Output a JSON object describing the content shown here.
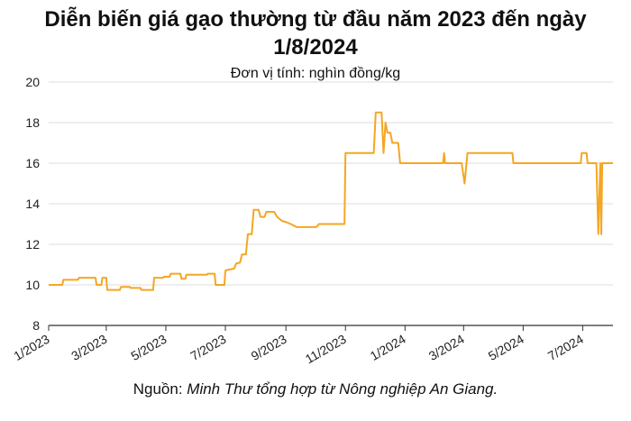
{
  "title_line1": "Diễn biến giá gạo thường từ đầu năm 2023 đến ngày",
  "title_line2": "1/8/2024",
  "subtitle": "Đơn vị tính: nghìn đồng/kg",
  "source_prefix": "Nguồn: ",
  "source_name": "Minh Thư tổng hợp từ Nông nghiệp An Giang.",
  "colors": {
    "line": "#f5a623",
    "grid": "#dddddd",
    "axis": "#333333"
  },
  "chart_data": {
    "type": "line",
    "title": "Diễn biến giá gạo thường từ đầu năm 2023 đến ngày 1/8/2024",
    "ylabel": "Đơn vị tính: nghìn đồng/kg",
    "xlabel": "",
    "ylim": [
      8,
      20
    ],
    "yticks": [
      8,
      10,
      12,
      14,
      16,
      18,
      20
    ],
    "xlim": [
      "2023-01-01",
      "2024-08-01"
    ],
    "xticks": [
      {
        "date": "2023-01-01",
        "label": "1/2023"
      },
      {
        "date": "2023-03-01",
        "label": "3/2023"
      },
      {
        "date": "2023-05-01",
        "label": "5/2023"
      },
      {
        "date": "2023-07-01",
        "label": "7/2023"
      },
      {
        "date": "2023-09-01",
        "label": "9/2023"
      },
      {
        "date": "2023-11-01",
        "label": "11/2023"
      },
      {
        "date": "2024-01-01",
        "label": "1/2024"
      },
      {
        "date": "2024-03-01",
        "label": "3/2024"
      },
      {
        "date": "2024-05-01",
        "label": "5/2024"
      },
      {
        "date": "2024-07-01",
        "label": "7/2024"
      }
    ],
    "grid": "horizontal",
    "series": [
      {
        "points": [
          [
            "2023-01-01",
            10.0
          ],
          [
            "2023-01-15",
            10.0
          ],
          [
            "2023-01-16",
            10.25
          ],
          [
            "2023-01-31",
            10.25
          ],
          [
            "2023-02-01",
            10.35
          ],
          [
            "2023-02-18",
            10.35
          ],
          [
            "2023-02-19",
            10.0
          ],
          [
            "2023-02-24",
            10.0
          ],
          [
            "2023-02-25",
            10.35
          ],
          [
            "2023-03-01",
            10.35
          ],
          [
            "2023-03-02",
            9.75
          ],
          [
            "2023-03-15",
            9.75
          ],
          [
            "2023-03-16",
            9.9
          ],
          [
            "2023-03-25",
            9.9
          ],
          [
            "2023-03-26",
            9.85
          ],
          [
            "2023-04-05",
            9.85
          ],
          [
            "2023-04-06",
            9.75
          ],
          [
            "2023-04-18",
            9.75
          ],
          [
            "2023-04-19",
            10.35
          ],
          [
            "2023-04-28",
            10.35
          ],
          [
            "2023-04-29",
            10.4
          ],
          [
            "2023-05-05",
            10.4
          ],
          [
            "2023-05-06",
            10.55
          ],
          [
            "2023-05-16",
            10.55
          ],
          [
            "2023-05-17",
            10.3
          ],
          [
            "2023-05-21",
            10.3
          ],
          [
            "2023-05-22",
            10.5
          ],
          [
            "2023-06-12",
            10.5
          ],
          [
            "2023-06-13",
            10.55
          ],
          [
            "2023-06-20",
            10.55
          ],
          [
            "2023-06-21",
            10.0
          ],
          [
            "2023-06-30",
            10.0
          ],
          [
            "2023-07-01",
            10.7
          ],
          [
            "2023-07-04",
            10.75
          ],
          [
            "2023-07-10",
            10.8
          ],
          [
            "2023-07-12",
            11.05
          ],
          [
            "2023-07-16",
            11.1
          ],
          [
            "2023-07-18",
            11.5
          ],
          [
            "2023-07-22",
            11.5
          ],
          [
            "2023-07-24",
            12.5
          ],
          [
            "2023-07-28",
            12.5
          ],
          [
            "2023-07-30",
            13.7
          ],
          [
            "2023-08-04",
            13.7
          ],
          [
            "2023-08-06",
            13.35
          ],
          [
            "2023-08-10",
            13.35
          ],
          [
            "2023-08-12",
            13.6
          ],
          [
            "2023-08-20",
            13.6
          ],
          [
            "2023-08-23",
            13.35
          ],
          [
            "2023-08-28",
            13.15
          ],
          [
            "2023-09-01",
            13.1
          ],
          [
            "2023-09-06",
            13.0
          ],
          [
            "2023-09-12",
            12.85
          ],
          [
            "2023-10-02",
            12.85
          ],
          [
            "2023-10-05",
            13.0
          ],
          [
            "2023-10-31",
            13.0
          ],
          [
            "2023-11-01",
            16.5
          ],
          [
            "2023-11-30",
            16.5
          ],
          [
            "2023-12-02",
            18.5
          ],
          [
            "2023-12-08",
            18.5
          ],
          [
            "2023-12-10",
            16.5
          ],
          [
            "2023-12-12",
            18.0
          ],
          [
            "2023-12-14",
            17.5
          ],
          [
            "2023-12-17",
            17.5
          ],
          [
            "2023-12-19",
            17.0
          ],
          [
            "2023-12-25",
            17.0
          ],
          [
            "2023-12-27",
            16.0
          ],
          [
            "2024-02-09",
            16.0
          ],
          [
            "2024-02-10",
            16.5
          ],
          [
            "2024-02-11",
            16.0
          ],
          [
            "2024-02-28",
            16.0
          ],
          [
            "2024-03-02",
            15.0
          ],
          [
            "2024-03-04",
            16.0
          ],
          [
            "2024-03-05",
            16.5
          ],
          [
            "2024-04-20",
            16.5
          ],
          [
            "2024-04-21",
            16.0
          ],
          [
            "2024-06-29",
            16.0
          ],
          [
            "2024-06-30",
            16.5
          ],
          [
            "2024-07-05",
            16.5
          ],
          [
            "2024-07-06",
            16.0
          ],
          [
            "2024-07-15",
            16.0
          ],
          [
            "2024-07-17",
            12.5
          ],
          [
            "2024-07-19",
            16.0
          ],
          [
            "2024-07-20",
            12.5
          ],
          [
            "2024-07-21",
            16.0
          ],
          [
            "2024-08-01",
            16.0
          ]
        ]
      }
    ]
  }
}
